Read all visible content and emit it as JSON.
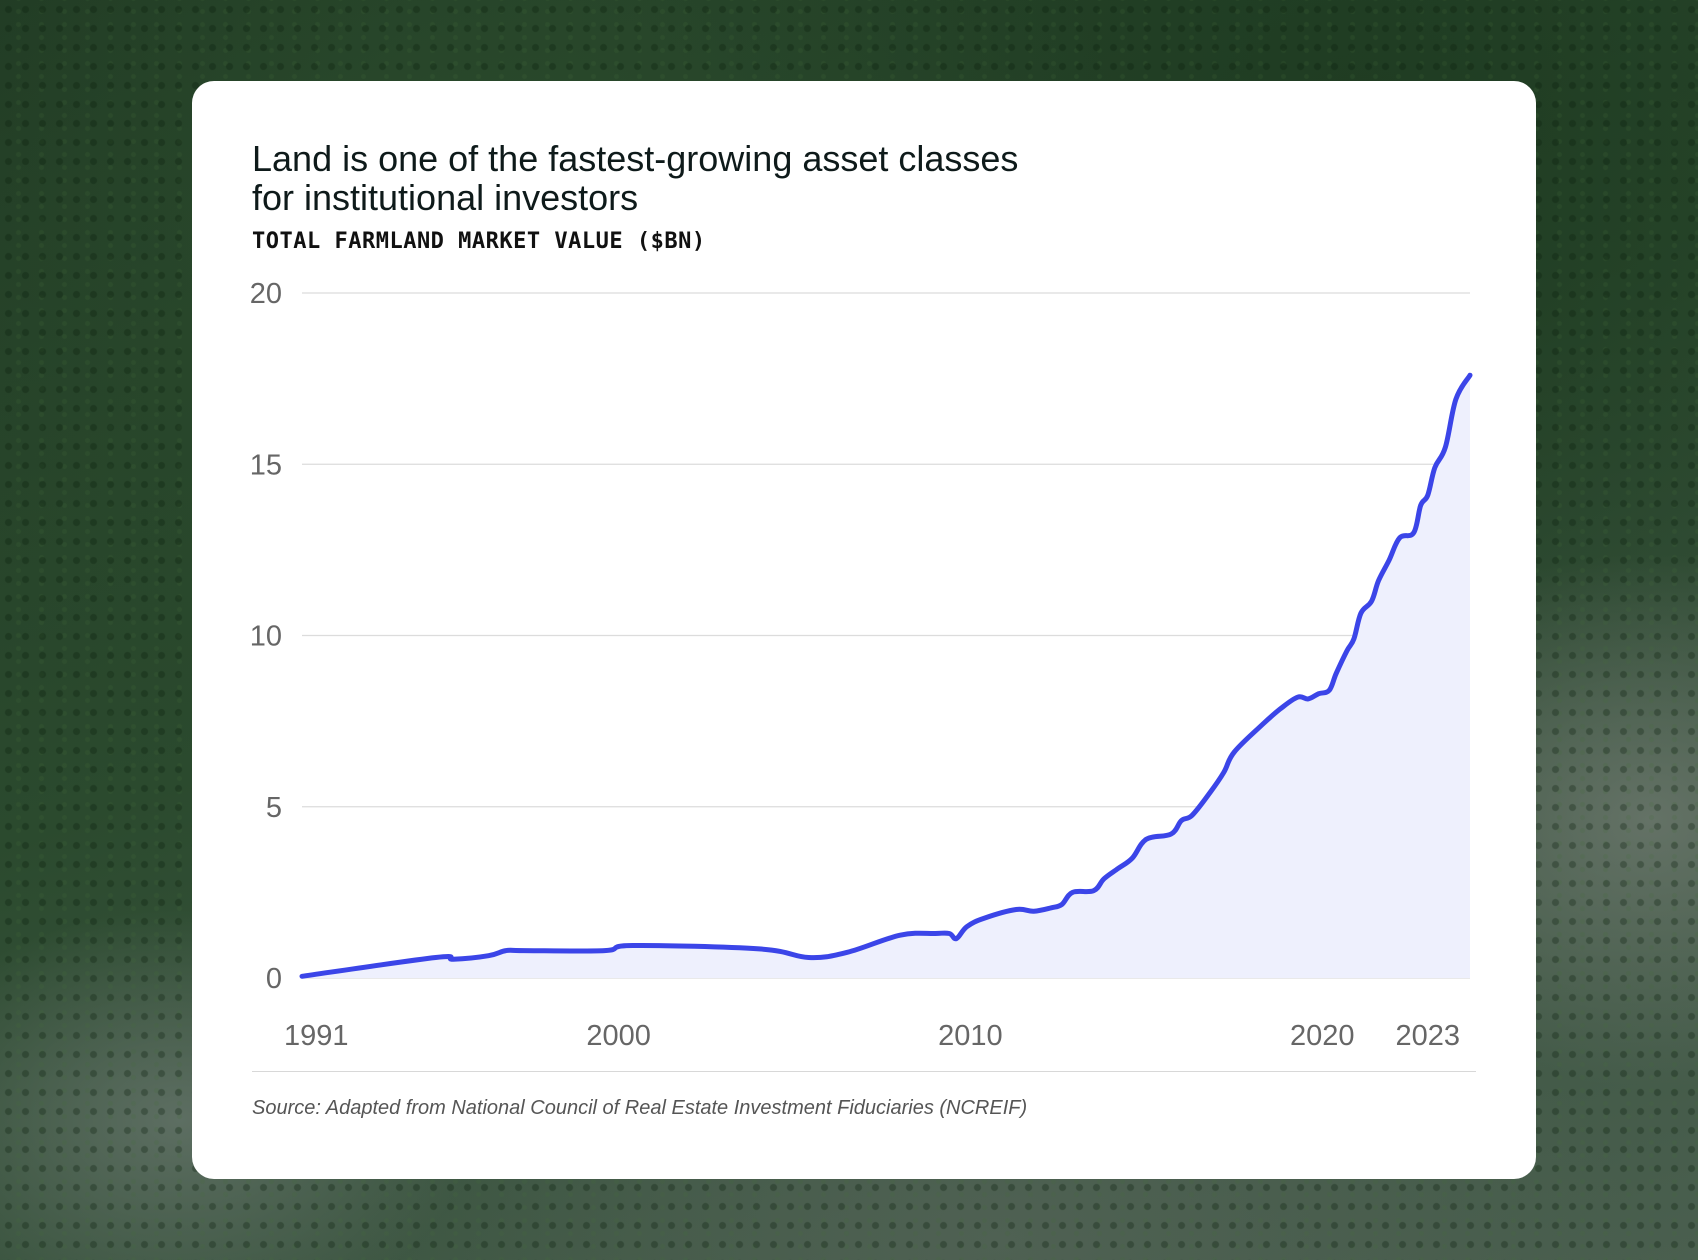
{
  "chart_data": {
    "type": "area",
    "title": "Land is one of the fastest-growing asset classes for institutional investors",
    "title_lines": [
      "Land is one of the fastest-growing asset classes",
      "for institutional investors"
    ],
    "subtitle": "TOTAL FARMLAND MARKET VALUE ($BN)",
    "ylabel": "",
    "xlabel": "",
    "ylim": [
      0,
      20
    ],
    "xlim": [
      1991,
      2024.2
    ],
    "y_ticks": [
      0,
      5,
      10,
      15,
      20
    ],
    "y_tick_labels": [
      "0",
      "5",
      "10",
      "15",
      "20"
    ],
    "x_ticks": [
      1991,
      2000,
      2010,
      2020,
      2023
    ],
    "x_tick_labels": [
      "1991",
      "2000",
      "2010",
      "2020",
      "2023"
    ],
    "grid": true,
    "series": [
      {
        "name": "Total farmland market value",
        "color": "#3b45e8",
        "fill": "#eef0fd",
        "x": [
          1991.0,
          1994.8,
          1995.3,
          1996.3,
          1996.8,
          1997.3,
          1999.6,
          2000.4,
          2004.0,
          2005.4,
          2006.5,
          2008.0,
          2009.0,
          2009.4,
          2009.6,
          2009.9,
          2010.4,
          2011.3,
          2011.8,
          2012.3,
          2012.6,
          2012.9,
          2013.5,
          2013.8,
          2014.2,
          2014.6,
          2015.0,
          2015.7,
          2016.0,
          2016.3,
          2016.8,
          2017.2,
          2017.5,
          2018.3,
          2018.8,
          2019.3,
          2019.6,
          2019.9,
          2020.2,
          2020.4,
          2020.7,
          2020.9,
          2021.1,
          2021.4,
          2021.6,
          2021.9,
          2022.2,
          2022.6,
          2022.8,
          2023.0,
          2023.2,
          2023.5,
          2023.8,
          2024.2
        ],
        "y": [
          0.05,
          0.6,
          0.55,
          0.65,
          0.8,
          0.8,
          0.8,
          0.95,
          0.85,
          0.6,
          0.75,
          1.25,
          1.3,
          1.3,
          1.15,
          1.5,
          1.75,
          2.0,
          1.95,
          2.05,
          2.15,
          2.5,
          2.55,
          2.9,
          3.2,
          3.5,
          4.05,
          4.2,
          4.6,
          4.75,
          5.4,
          6.0,
          6.6,
          7.4,
          7.85,
          8.2,
          8.15,
          8.3,
          8.4,
          8.9,
          9.55,
          9.9,
          10.65,
          11.0,
          11.6,
          12.2,
          12.85,
          13.0,
          13.8,
          14.1,
          14.9,
          15.5,
          16.9,
          17.6
        ]
      }
    ]
  },
  "source": "Source: Adapted from National Council of Real Estate Investment Fiduciaries (NCREIF)"
}
